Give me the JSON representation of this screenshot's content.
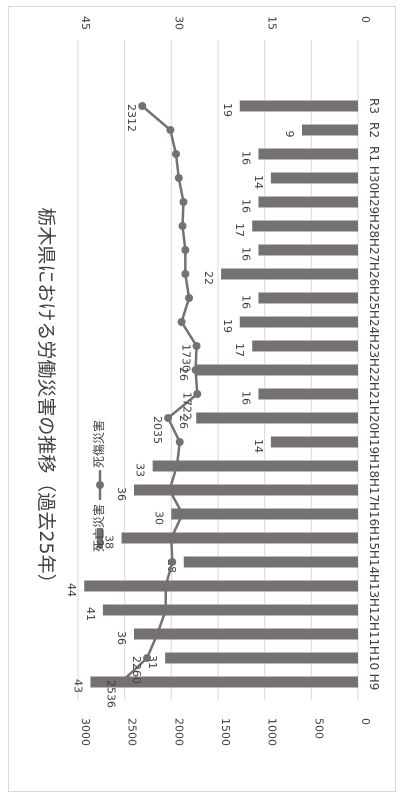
{
  "chart_data": {
    "type": "bar+line",
    "title": "栃木県における労働災害の推移（過去25年）",
    "categories": [
      "H9",
      "H10",
      "H11",
      "H12",
      "H13",
      "H14",
      "H15",
      "H16",
      "H17",
      "H18",
      "H19",
      "H20",
      "H21",
      "H22",
      "H23",
      "H24",
      "H25",
      "H26",
      "H27",
      "H28",
      "H29",
      "H30",
      "R1",
      "R2",
      "R3"
    ],
    "series": [
      {
        "name": "死亡災害",
        "kind": "bar",
        "axis": "secondary",
        "color": "#767171",
        "values": [
          43,
          31,
          36,
          41,
          44,
          28,
          38,
          30,
          36,
          33,
          14,
          26,
          16,
          26,
          17,
          19,
          16,
          22,
          16,
          17,
          16,
          14,
          16,
          9,
          19
        ],
        "labels": [
          "43",
          "31",
          "36",
          "41",
          "44",
          "28",
          "38",
          "30",
          "36",
          "33",
          "14",
          "26",
          "16",
          "26",
          "17",
          "19",
          "16",
          "22",
          "16",
          "17",
          "16",
          "14",
          "16",
          "9",
          "19"
        ]
      },
      {
        "name": "死傷災害",
        "kind": "line",
        "axis": "primary",
        "color": "#767171",
        "values": [
          2536,
          2260,
          2150,
          2060,
          2060,
          1990,
          2000,
          1880,
          2020,
          1940,
          1910,
          2035,
          1722,
          1740,
          1730,
          1890,
          1810,
          1850,
          1850,
          1880,
          1870,
          1920,
          1950,
          2010,
          2312
        ],
        "labels": {
          "0": "2536",
          "1": "2260",
          "11": "2035",
          "12": "1722",
          "14": "1730",
          "24": "2312"
        }
      }
    ],
    "primary_axis": {
      "min": 0,
      "max": 3000,
      "ticks": [
        "0",
        "500",
        "1000",
        "1500",
        "2000",
        "2500",
        "3000"
      ]
    },
    "secondary_axis": {
      "min": 0,
      "max": 45,
      "ticks": [
        "0",
        "15",
        "30",
        "45"
      ]
    },
    "grid": true,
    "legend": [
      "死亡災害",
      "死傷災害"
    ],
    "orientation": "rotated 90° clockwise"
  }
}
